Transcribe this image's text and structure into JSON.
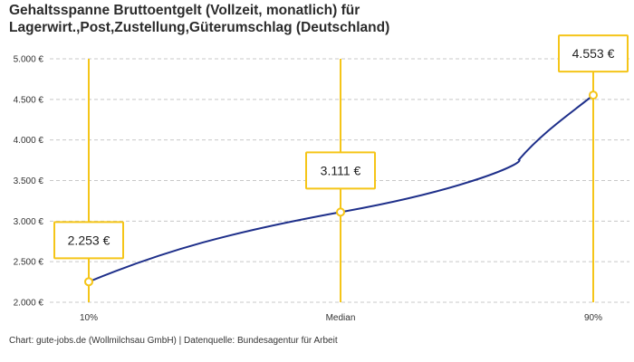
{
  "title_line1": "Gehaltsspanne Bruttoentgelt (Vollzeit, monatlich) für",
  "title_line2": "Lagerwirt.,Post,Zustellung,Güterumschlag (Deutschland)",
  "source": "Chart: gute-jobs.de (Wollmilchsau GmbH) | Datenquelle: Bundesagentur für Arbeit",
  "colors": {
    "line": "#1e2f8a",
    "accent": "#f5c518",
    "grid": "#c8c8c8"
  },
  "chart_data": {
    "type": "line",
    "categories": [
      "10%",
      "Median",
      "90%"
    ],
    "values": [
      2253,
      3111,
      4553
    ],
    "data_labels": [
      "2.253 €",
      "3.111 €",
      "4.553 €"
    ],
    "ylim": [
      2000,
      5000
    ],
    "y_ticks": [
      2000,
      2500,
      3000,
      3500,
      4000,
      4500,
      5000
    ],
    "y_tick_labels": [
      "2.000 €",
      "2.500 €",
      "3.000 €",
      "3.500 €",
      "4.000 €",
      "4.500 €",
      "5.000 €"
    ],
    "grid": true,
    "xlabel": "",
    "ylabel": ""
  }
}
